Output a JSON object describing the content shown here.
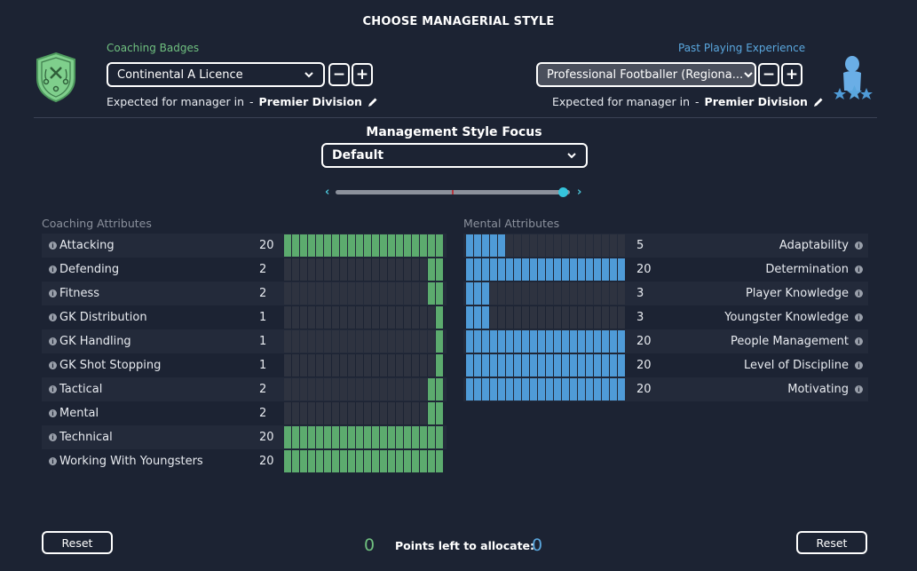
{
  "title": "CHOOSE MANAGERIAL STYLE",
  "coaching_badges": {
    "label": "Coaching Badges",
    "selected": "Continental A Licence",
    "minus": "−",
    "plus": "+",
    "expected_prefix": "Expected for manager in",
    "expected_sep": "-",
    "expected_division": "Premier Division"
  },
  "past_playing": {
    "label": "Past Playing Experience",
    "selected": "Professional Footballer (Regiona...",
    "minus": "−",
    "plus": "+",
    "expected_prefix": "Expected for manager in",
    "expected_sep": "-",
    "expected_division": "Premier Division"
  },
  "focus": {
    "title": "Management Style Focus",
    "selected": "Default",
    "slider_position": 0.97
  },
  "coaching_attributes": {
    "label": "Coaching Attributes",
    "items": [
      {
        "name": "Attacking",
        "value": 20
      },
      {
        "name": "Defending",
        "value": 2
      },
      {
        "name": "Fitness",
        "value": 2
      },
      {
        "name": "GK Distribution",
        "value": 1
      },
      {
        "name": "GK Handling",
        "value": 1
      },
      {
        "name": "GK Shot Stopping",
        "value": 1
      },
      {
        "name": "Tactical",
        "value": 2
      },
      {
        "name": "Mental",
        "value": 2
      },
      {
        "name": "Technical",
        "value": 20
      },
      {
        "name": "Working With Youngsters",
        "value": 20
      }
    ]
  },
  "mental_attributes": {
    "label": "Mental Attributes",
    "items": [
      {
        "name": "Adaptability",
        "value": 5
      },
      {
        "name": "Determination",
        "value": 20
      },
      {
        "name": "Player Knowledge",
        "value": 3
      },
      {
        "name": "Youngster Knowledge",
        "value": 3
      },
      {
        "name": "People Management",
        "value": 20
      },
      {
        "name": "Level of Discipline",
        "value": 20
      },
      {
        "name": "Motivating",
        "value": 20
      }
    ]
  },
  "footer": {
    "reset_left": "Reset",
    "reset_right": "Reset",
    "points_left_label": "Points left to allocate:",
    "coaching_points": "0",
    "mental_points": "0"
  },
  "colors": {
    "coaching_bar": "#5cab6e",
    "mental_bar": "#4f9bd7",
    "empty_bar": "#2e3340"
  },
  "icons": {
    "coaching": "tactics-shield-icon",
    "playing": "player-stars-icon",
    "info": "info-icon"
  }
}
